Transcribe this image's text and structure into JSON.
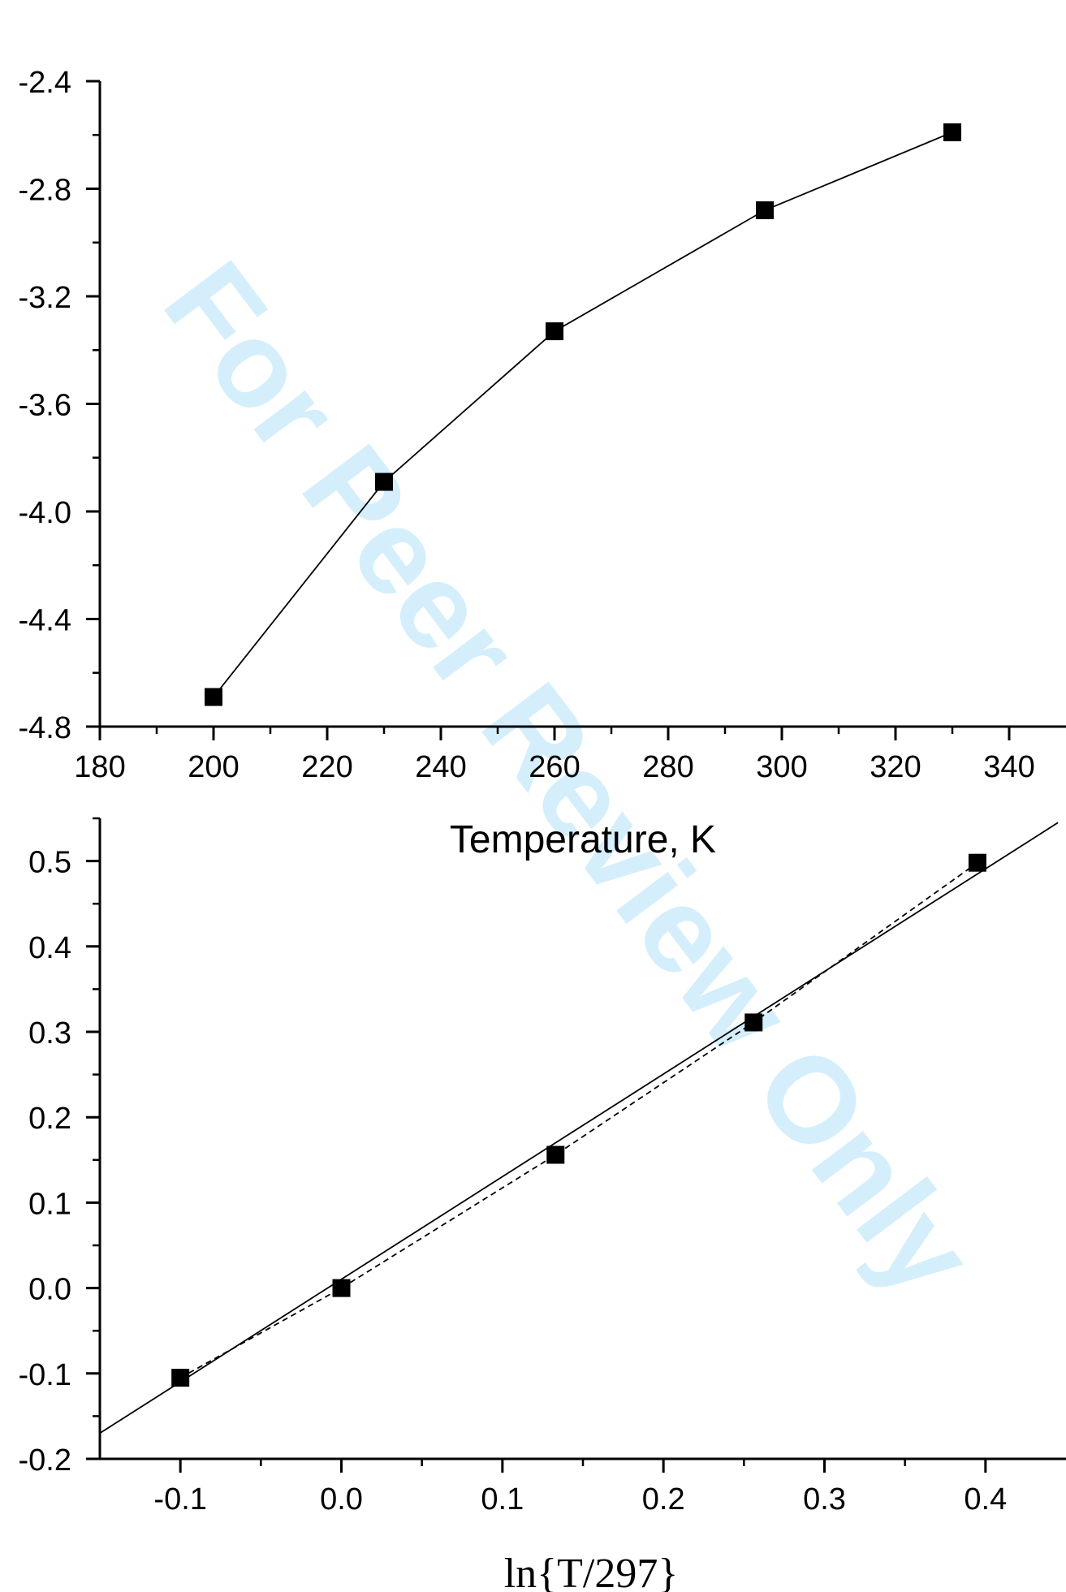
{
  "watermark": "For Peer Review Only",
  "chart_data": [
    {
      "type": "line",
      "title": "",
      "xlabel": "Temperature,  K",
      "ylabel": "",
      "xlim": [
        180,
        350
      ],
      "ylim": [
        -4.8,
        -2.4
      ],
      "x_ticks": [
        180,
        200,
        220,
        240,
        260,
        280,
        300,
        320,
        340
      ],
      "x_tick_labels": [
        "180",
        "200",
        "220",
        "240",
        "260",
        "280",
        "300",
        "320",
        "340"
      ],
      "y_ticks": [
        -4.8,
        -4.4,
        -4.0,
        -3.6,
        -3.2,
        -2.8,
        -2.4
      ],
      "y_tick_labels": [
        "-4.8",
        "-4.4",
        "-4.0",
        "-3.6",
        "-3.2",
        "-2.8",
        "-2.4"
      ],
      "x_minor_step": 10,
      "y_minor_step": 0.2,
      "grid": false,
      "series": [
        {
          "marker": "square",
          "line": "solid",
          "color": "#000000",
          "x": [
            200,
            230,
            260,
            297,
            330
          ],
          "y": [
            -4.69,
            -3.89,
            -3.33,
            -2.88,
            -2.59
          ]
        }
      ]
    },
    {
      "type": "scatter",
      "title": "",
      "xlabel": "ln{T/297}",
      "ylabel": "",
      "xlim": [
        -0.15,
        0.45
      ],
      "ylim": [
        -0.2,
        0.55
      ],
      "x_ticks": [
        -0.1,
        0.0,
        0.1,
        0.2,
        0.3,
        0.4
      ],
      "x_tick_labels": [
        "-0.1",
        "0.0",
        "0.1",
        "0.2",
        "0.3",
        "0.4"
      ],
      "y_ticks": [
        -0.2,
        -0.1,
        0.0,
        0.1,
        0.2,
        0.3,
        0.4,
        0.5
      ],
      "y_tick_labels": [
        "-0.2",
        "-0.1",
        "0.0",
        "0.1",
        "0.2",
        "0.3",
        "0.4",
        "0.5"
      ],
      "x_minor_step": 0.05,
      "y_minor_step": 0.05,
      "grid": false,
      "series": [
        {
          "marker": "square",
          "line": "dashed",
          "color": "#000000",
          "x": [
            -0.1,
            0.0,
            0.133,
            0.256,
            0.395
          ],
          "y": [
            -0.105,
            0.0,
            0.156,
            0.311,
            0.498
          ]
        },
        {
          "marker": "none",
          "line": "solid",
          "fit": true,
          "color": "#000000",
          "x": [
            -0.15,
            0.445
          ],
          "y": [
            -0.17,
            0.545
          ]
        }
      ]
    }
  ]
}
